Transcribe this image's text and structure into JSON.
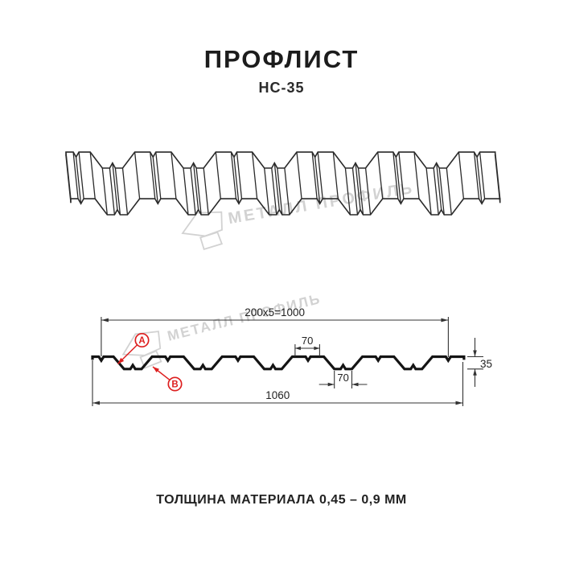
{
  "header": {
    "title": "ПРОФЛИСТ",
    "subtitle": "НС-35"
  },
  "watermark": {
    "brand": "МЕТАЛЛ ПРОФИЛЬ"
  },
  "drawing": {
    "dims": {
      "working_width": "200x5=1000",
      "rib_top_width": "70",
      "rib_bottom_width": "70",
      "profile_height": "35",
      "total_width": "1060"
    },
    "point_labels": {
      "a": "A",
      "b": "B"
    }
  },
  "footer": {
    "material_thickness": "ТОЛЩИНА МАТЕРИАЛА 0,45 – 0,9 ММ"
  },
  "colors": {
    "line": "#141414",
    "wire": "#2a2a2a",
    "dim": "#333333",
    "red": "#dd1f1f",
    "watermark": "#d2d2d2"
  }
}
